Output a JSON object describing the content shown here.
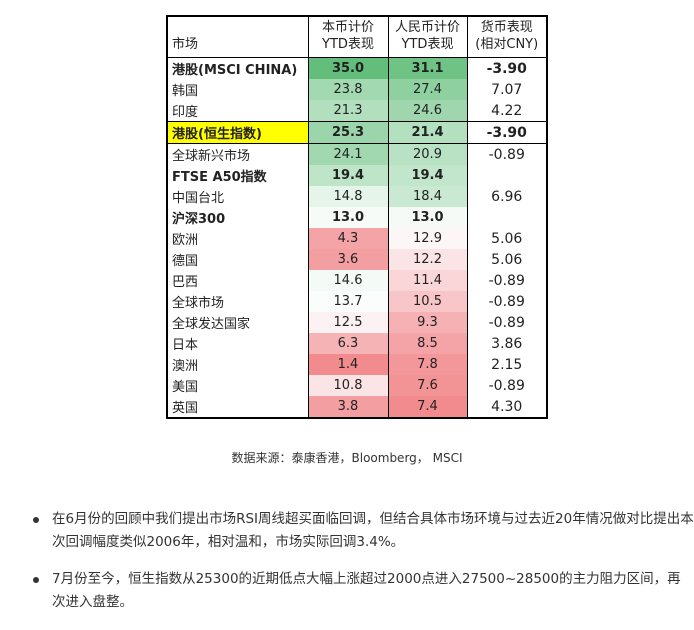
{
  "table": {
    "headers": {
      "market": "市场",
      "local_l1": "本币计价",
      "local_l2": "YTD表现",
      "cny_l1": "人民币计价",
      "cny_l2": "YTD表现",
      "fx_l1": "货币表现",
      "fx_l2": "(相对CNY)"
    },
    "rows": [
      {
        "name": "港股(MSCI CHINA)",
        "local": "35.0",
        "cny": "31.1",
        "fx": "-3.90",
        "bold": true,
        "highlight": false,
        "sep": false,
        "local_bg": "#63be7b",
        "cny_bg": "#6fc384"
      },
      {
        "name": "韩国",
        "local": "23.8",
        "cny": "27.4",
        "fx": "7.07",
        "bold": false,
        "highlight": false,
        "sep": false,
        "local_bg": "#a3d9b1",
        "cny_bg": "#8fd0a0"
      },
      {
        "name": "印度",
        "local": "21.3",
        "cny": "24.6",
        "fx": "4.22",
        "bold": false,
        "highlight": false,
        "sep": true,
        "local_bg": "#b2dfbe",
        "cny_bg": "#9fd6ad"
      },
      {
        "name": "港股(恒生指数)",
        "local": "25.3",
        "cny": "21.4",
        "fx": "-3.90",
        "bold": true,
        "highlight": true,
        "sep": true,
        "local_bg": "#9bd5ab",
        "cny_bg": "#b3e0bf"
      },
      {
        "name": "全球新兴市场",
        "local": "24.1",
        "cny": "20.9",
        "fx": "-0.89",
        "bold": false,
        "highlight": false,
        "sep": false,
        "local_bg": "#a1d8af",
        "cny_bg": "#b8e2c3"
      },
      {
        "name": "FTSE A50指数",
        "local": "19.4",
        "cny": "19.4",
        "fx": "",
        "bold": true,
        "highlight": false,
        "sep": false,
        "local_bg": "#bfe5c9",
        "cny_bg": "#c1e6cb"
      },
      {
        "name": "中国台北",
        "local": "14.8",
        "cny": "18.4",
        "fx": "6.96",
        "bold": false,
        "highlight": false,
        "sep": false,
        "local_bg": "#e6f5ea",
        "cny_bg": "#c9e9d2"
      },
      {
        "name": "沪深300",
        "local": "13.0",
        "cny": "13.0",
        "fx": "",
        "bold": true,
        "highlight": false,
        "sep": false,
        "local_bg": "#f7fbf8",
        "cny_bg": "#f5faf6"
      },
      {
        "name": "欧洲",
        "local": "4.3",
        "cny": "12.9",
        "fx": "5.06",
        "bold": false,
        "highlight": false,
        "sep": false,
        "local_bg": "#f4a3a6",
        "cny_bg": "#fdf6f7"
      },
      {
        "name": "德国",
        "local": "3.6",
        "cny": "12.2",
        "fx": "5.06",
        "bold": false,
        "highlight": false,
        "sep": false,
        "local_bg": "#f39ea1",
        "cny_bg": "#fbe4e5"
      },
      {
        "name": "巴西",
        "local": "14.6",
        "cny": "11.4",
        "fx": "-0.89",
        "bold": false,
        "highlight": false,
        "sep": false,
        "local_bg": "#f4fbf6",
        "cny_bg": "#fad6d8"
      },
      {
        "name": "全球市场",
        "local": "13.7",
        "cny": "10.5",
        "fx": "-0.89",
        "bold": false,
        "highlight": false,
        "sep": false,
        "local_bg": "#fbfdfc",
        "cny_bg": "#f8c6c8"
      },
      {
        "name": "全球发达国家",
        "local": "12.5",
        "cny": "9.3",
        "fx": "-0.89",
        "bold": false,
        "highlight": false,
        "sep": false,
        "local_bg": "#fdf2f3",
        "cny_bg": "#f6b1b4"
      },
      {
        "name": "日本",
        "local": "6.3",
        "cny": "8.5",
        "fx": "3.86",
        "bold": false,
        "highlight": false,
        "sep": false,
        "local_bg": "#f6b3b6",
        "cny_bg": "#f4a4a7"
      },
      {
        "name": "澳洲",
        "local": "1.4",
        "cny": "7.8",
        "fx": "2.15",
        "bold": false,
        "highlight": false,
        "sep": false,
        "local_bg": "#f28b8e",
        "cny_bg": "#f3979a"
      },
      {
        "name": "美国",
        "local": "10.8",
        "cny": "7.6",
        "fx": "-0.89",
        "bold": false,
        "highlight": false,
        "sep": false,
        "local_bg": "#fbe4e5",
        "cny_bg": "#f29396"
      },
      {
        "name": "英国",
        "local": "3.8",
        "cny": "7.4",
        "fx": "4.30",
        "bold": false,
        "highlight": false,
        "sep": false,
        "local_bg": "#f39fa2",
        "cny_bg": "#f28b8e"
      }
    ]
  },
  "source": "数据来源：泰康香港，Bloomberg， MSCI",
  "bullets": [
    "在6月份的回顾中我们提出市场RSI周线超买面临回调，但结合具体市场环境与过去近20年情况做对比提出本次回调幅度类似2006年，相对温和，市场实际回调3.4%。",
    "7月份至今，恒生指数从25300的近期低点大幅上涨超过2000点进入27500~28500的主力阻力区间，再次进入盘整。"
  ]
}
